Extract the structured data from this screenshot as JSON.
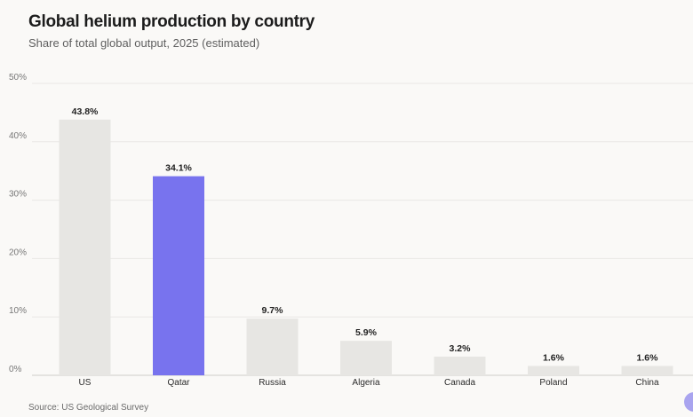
{
  "header": {
    "title": "Global helium production by country",
    "subtitle": "Share of total global output, 2025 (estimated)"
  },
  "footer": {
    "source": "US Geological Survey"
  },
  "colors": {
    "default_bar": "#e7e6e3",
    "highlight_bar": "#7873ee",
    "grid": "#e9e8e5",
    "baseline": "#cfcdc9"
  },
  "chart_data": {
    "type": "bar",
    "title": "Global helium production by country",
    "subtitle": "Share of total global output, 2025 (estimated)",
    "categories": [
      "US",
      "Qatar",
      "Russia",
      "Algeria",
      "Canada",
      "Poland",
      "China"
    ],
    "values": [
      43.8,
      34.1,
      9.7,
      5.9,
      3.2,
      1.6,
      1.6
    ],
    "value_labels": [
      "43.8%",
      "34.1%",
      "9.7%",
      "5.9%",
      "3.2%",
      "1.6%",
      "1.6%"
    ],
    "highlight": "Qatar",
    "ylim": [
      0,
      50
    ],
    "yticks": [
      0,
      10,
      20,
      30,
      40,
      50
    ],
    "ytick_labels": [
      "0%",
      "10%",
      "20%",
      "30%",
      "40%",
      "50%"
    ],
    "grid": true,
    "legend": "none"
  }
}
